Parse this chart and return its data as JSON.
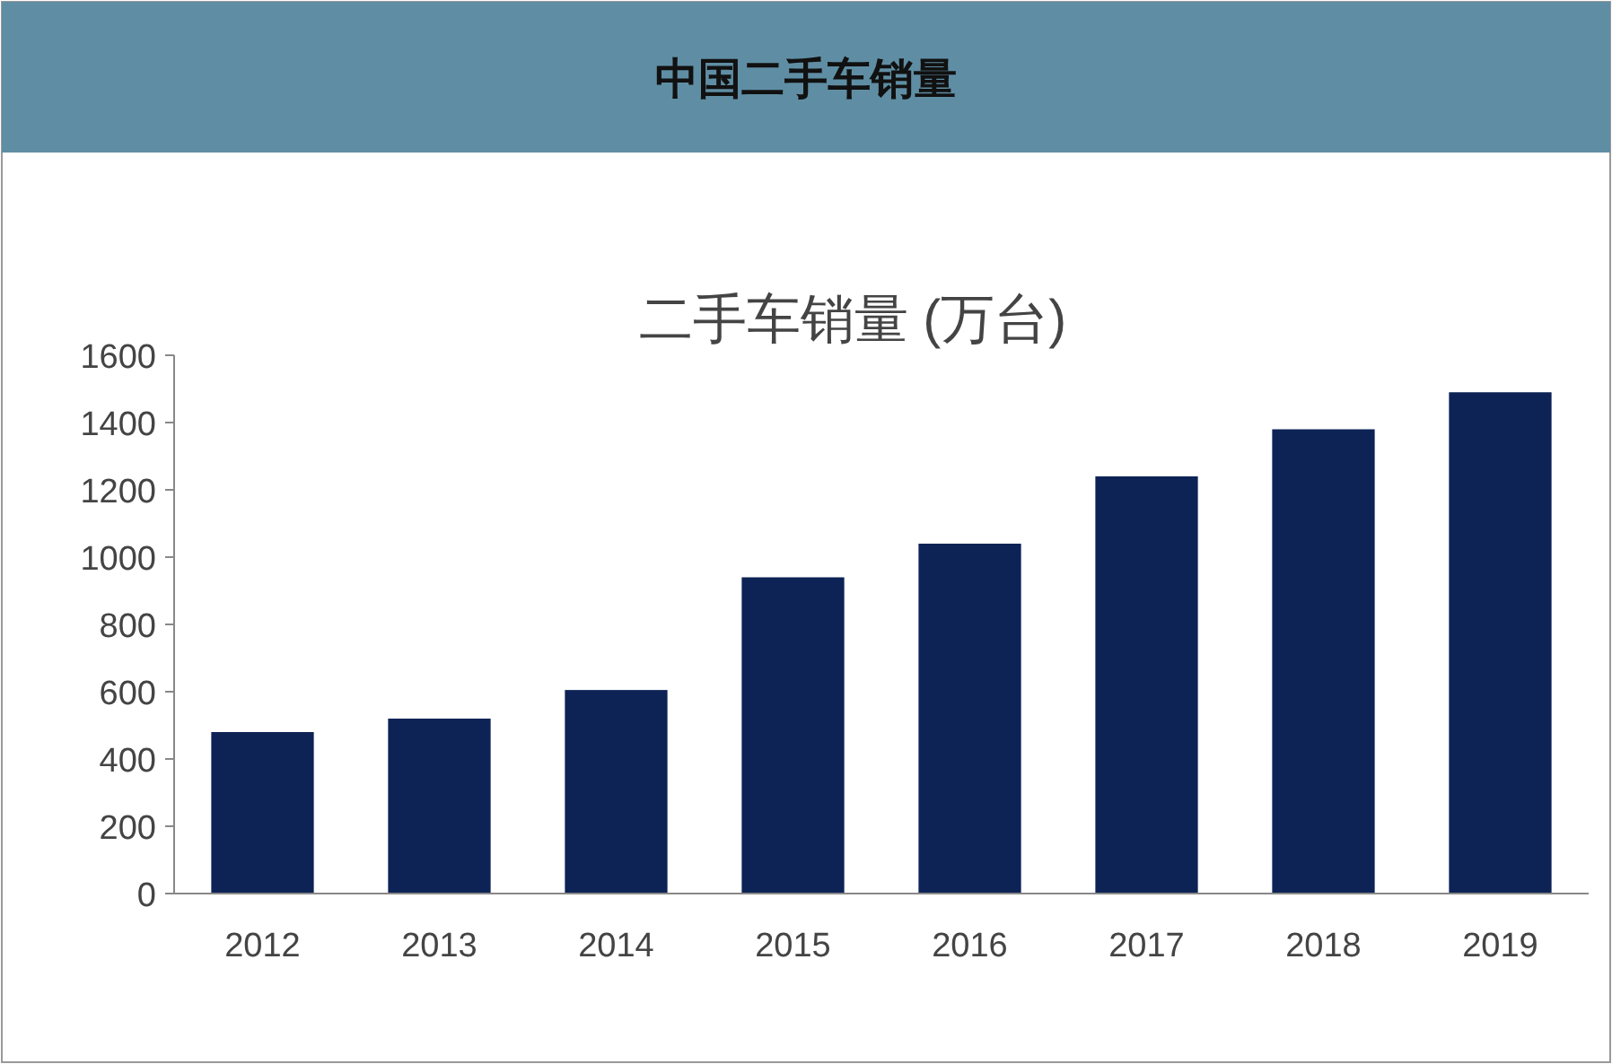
{
  "chart_data": {
    "type": "bar",
    "title": "中国二手车销量",
    "subtitle": "二手车销量 (万台)",
    "categories": [
      "2012",
      "2013",
      "2014",
      "2015",
      "2016",
      "2017",
      "2018",
      "2019"
    ],
    "values": [
      480,
      520,
      605,
      940,
      1040,
      1240,
      1380,
      1490
    ],
    "color": "#0d2356",
    "ylim": [
      0,
      1600
    ],
    "yticks": [
      0,
      200,
      400,
      600,
      800,
      1000,
      1200,
      1400,
      1600
    ],
    "grid": false
  }
}
